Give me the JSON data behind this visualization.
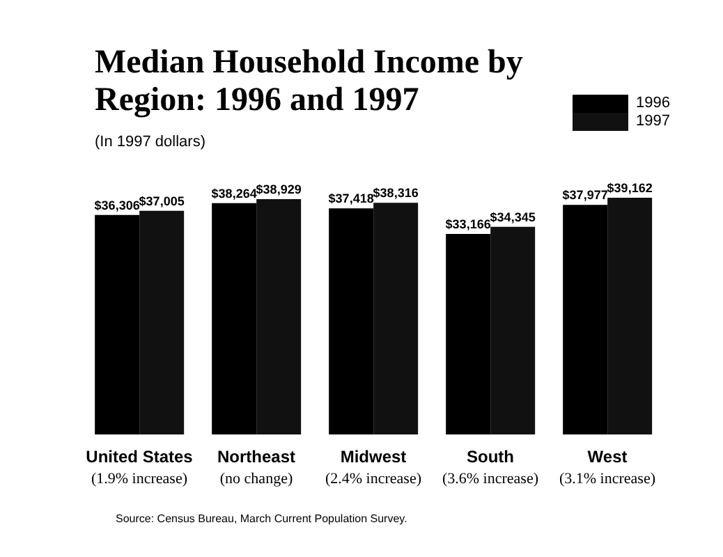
{
  "chart_data": {
    "type": "bar",
    "title": "Median Household Income by Region:  1996 and 1997",
    "subtitle": "(In 1997 dollars)",
    "categories": [
      "United States",
      "Northeast",
      "Midwest",
      "South",
      "West"
    ],
    "series": [
      {
        "name": "1996",
        "color": "#000000",
        "values": [
          36306,
          38264,
          37418,
          33166,
          37977
        ],
        "value_labels": [
          "$36,306",
          "$38,264",
          "$37,418",
          "$33,166",
          "$37,977"
        ]
      },
      {
        "name": "1997",
        "color": "#111111",
        "values": [
          37005,
          38929,
          38316,
          34345,
          39162
        ],
        "value_labels": [
          "$37,005",
          "$38,929",
          "$38,316",
          "$34,345",
          "$39,162"
        ]
      }
    ],
    "legend": "top right",
    "annotations": [
      "(1.9% increase)",
      "(no change)",
      "(2.4% increase)",
      "(3.6% increase)",
      "(3.1% increase)",
      "Source:  Census Bureau, March Current Population Survey."
    ]
  }
}
